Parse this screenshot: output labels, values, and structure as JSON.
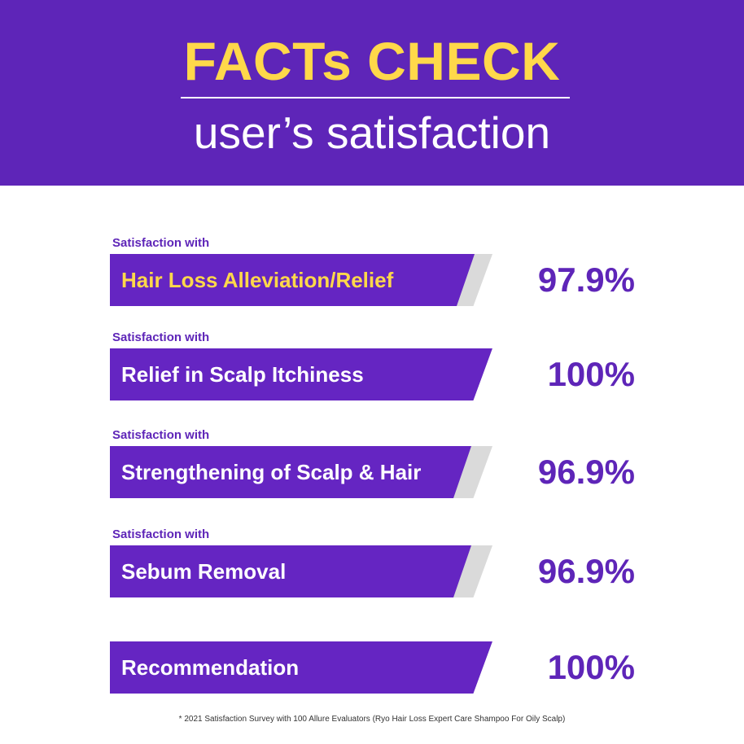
{
  "header": {
    "title": "FACTs CHECK",
    "subtitle": "user’s satisfaction"
  },
  "colors": {
    "brand_purple": "#5e25b8",
    "bar_purple": "#6525c2",
    "track_gray": "#dadada",
    "title_yellow": "#ffd84a"
  },
  "chart_data": {
    "type": "bar",
    "orientation": "horizontal",
    "categories": [
      "Hair Loss Alleviation/Relief",
      "Relief in Scalp Itchiness",
      "Strengthening of Scalp & Hair",
      "Sebum Removal",
      "Recommendation"
    ],
    "captions": [
      "Satisfaction with",
      "Satisfaction with",
      "Satisfaction with",
      "Satisfaction with",
      ""
    ],
    "values": [
      97.9,
      100,
      96.9,
      96.9,
      100
    ],
    "value_labels": [
      "97.9%",
      "100%",
      "96.9%",
      "96.9%",
      "100%"
    ],
    "highlight_index": 0,
    "xlim": [
      0,
      100
    ],
    "grid": false,
    "legend": "none"
  },
  "footnote": "* 2021 Satisfaction Survey with 100 Allure Evaluators (Ryo Hair Loss Expert Care Shampoo For Oily Scalp)"
}
